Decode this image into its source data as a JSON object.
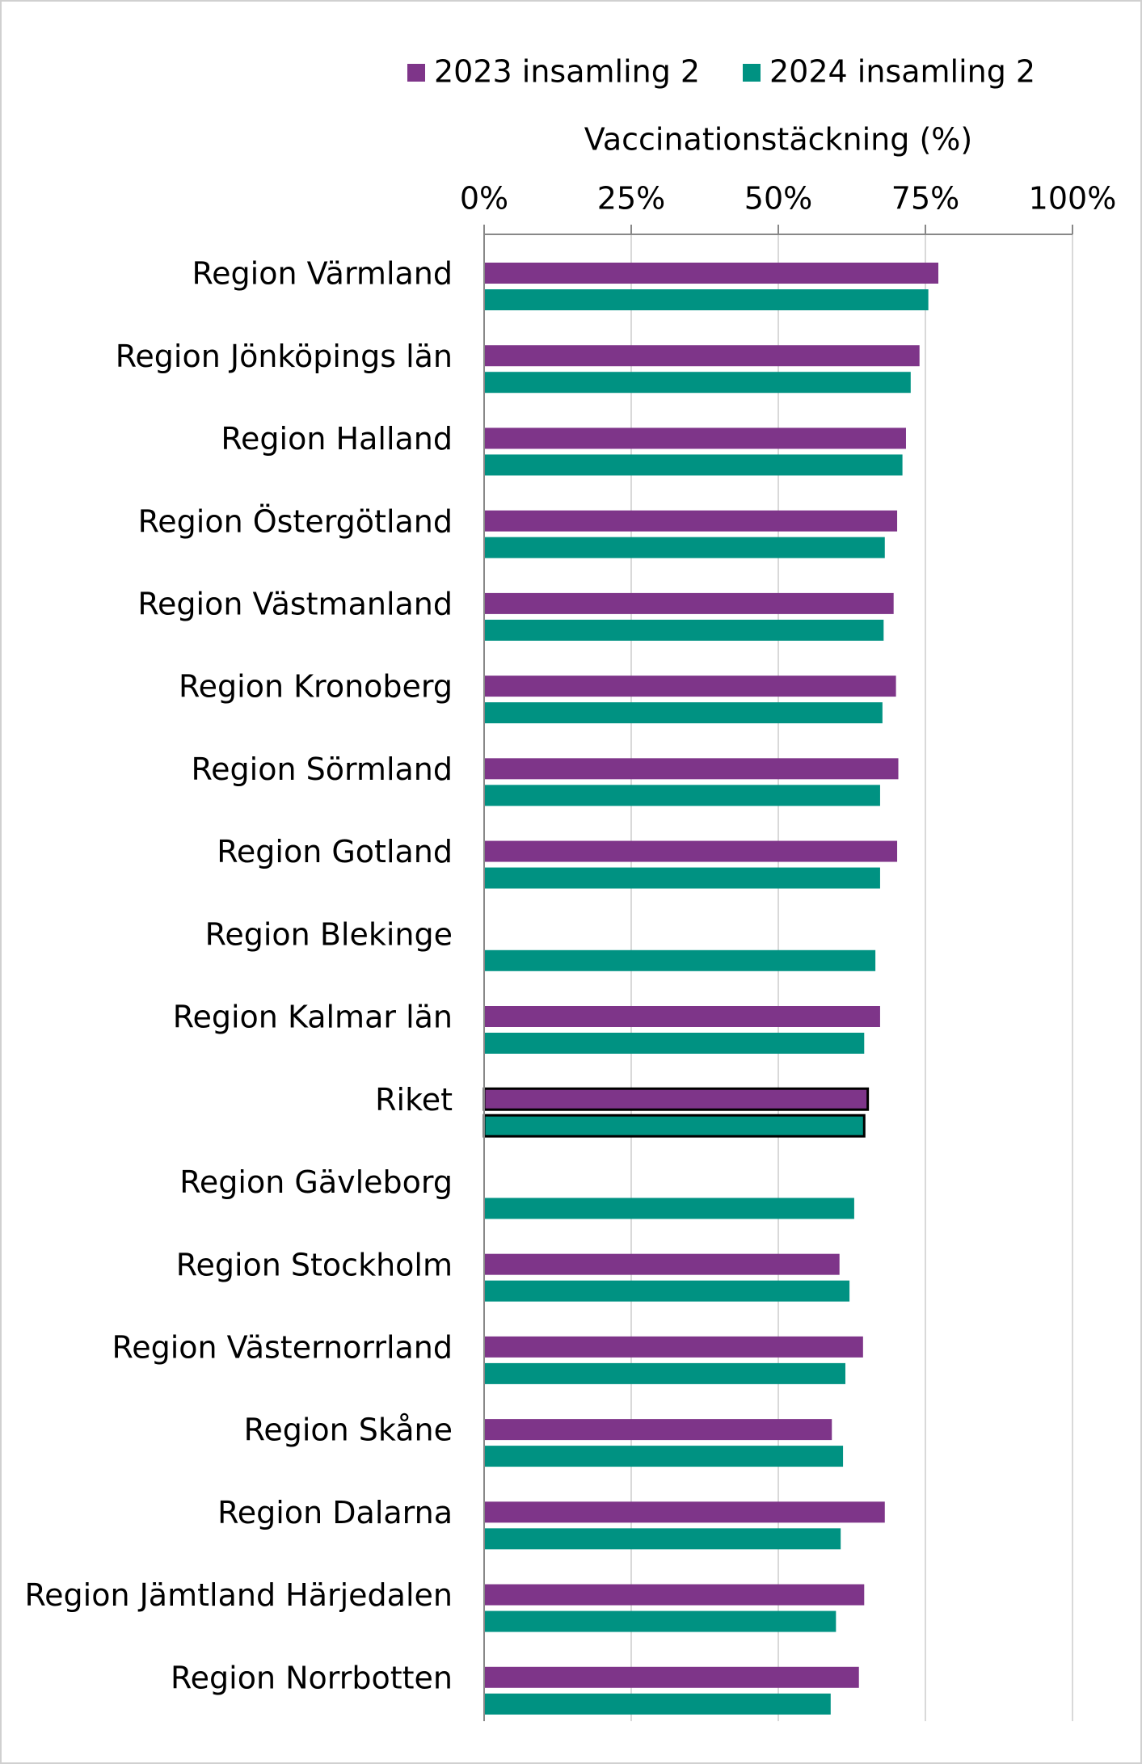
{
  "chart_data": {
    "type": "bar",
    "orientation": "horizontal",
    "x_axis_title": "Vaccinationstäckning (%)",
    "categories": [
      "Region Värmland",
      "Region Jönköpings län",
      "Region Halland",
      "Region Östergötland",
      "Region Västmanland",
      "Region Kronoberg",
      "Region Sörmland",
      "Region Gotland",
      "Region Blekinge",
      "Region Kalmar län",
      "Riket",
      "Region Gävleborg",
      "Region Stockholm",
      "Region Västernorrland",
      "Region Skåne",
      "Region Dalarna",
      "Region Jämtland Härjedalen",
      "Region Norrbotten"
    ],
    "series": [
      {
        "name": "2023 insamling 2",
        "color": "#7e3589",
        "values": [
          77.2,
          74.0,
          71.7,
          70.2,
          69.6,
          70.0,
          70.4,
          70.2,
          null,
          67.3,
          65.2,
          null,
          60.4,
          64.4,
          59.1,
          68.1,
          64.6,
          63.7
        ]
      },
      {
        "name": "2024 insamling 2",
        "color": "#009282",
        "values": [
          75.5,
          72.5,
          71.1,
          68.1,
          67.9,
          67.7,
          67.3,
          67.3,
          66.5,
          64.6,
          64.6,
          62.9,
          62.1,
          61.4,
          61.0,
          60.6,
          59.8,
          58.9
        ]
      }
    ],
    "outlined_category": "Riket",
    "xlim": [
      0,
      100
    ],
    "xticks": [
      {
        "value": 0,
        "label": "0%"
      },
      {
        "value": 25,
        "label": "25%"
      },
      {
        "value": 50,
        "label": "50%"
      },
      {
        "value": 75,
        "label": "75%"
      },
      {
        "value": 100,
        "label": "100%"
      }
    ],
    "grid": true,
    "legend_position": "top"
  }
}
